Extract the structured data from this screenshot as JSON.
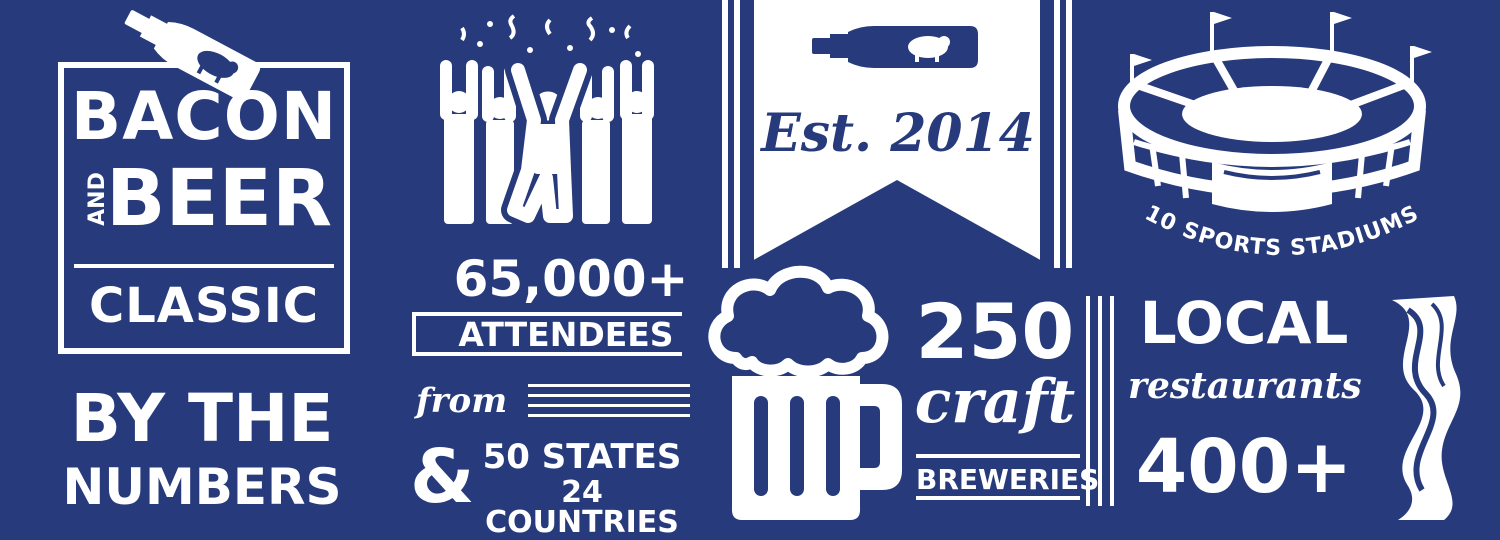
{
  "logo": {
    "line1": "BACON",
    "and": "AND",
    "line2": "BEER",
    "line3": "CLASSIC"
  },
  "by_numbers": {
    "line1": "BY THE",
    "line2": "NUMBERS"
  },
  "attendees": {
    "count": "65,000+",
    "label": "ATTENDEES",
    "from": "from",
    "amp": "&",
    "states": "50 STATES",
    "countries": "24 COUNTRIES"
  },
  "banner": {
    "est": "Est. 2014"
  },
  "stadiums": {
    "label": "10 SPORTS STADIUMS"
  },
  "breweries": {
    "count": "250",
    "craft": "craft",
    "label": "BREWERIES"
  },
  "restaurants": {
    "local": "LOCAL",
    "label": "restaurants",
    "count": "400+"
  },
  "colors": {
    "background": "#273b7c",
    "foreground": "#ffffff"
  }
}
